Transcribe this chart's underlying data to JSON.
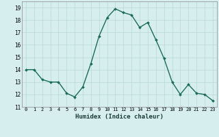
{
  "x_values": [
    0,
    1,
    2,
    3,
    4,
    5,
    6,
    7,
    8,
    9,
    10,
    11,
    12,
    13,
    14,
    15,
    16,
    17,
    18,
    19,
    20,
    21,
    22,
    23
  ],
  "y_values": [
    14.0,
    14.0,
    13.2,
    13.0,
    13.0,
    12.1,
    11.8,
    12.6,
    14.5,
    16.7,
    18.2,
    18.9,
    18.6,
    18.4,
    17.4,
    17.8,
    16.4,
    14.9,
    13.0,
    12.0,
    12.8,
    12.1,
    12.0,
    11.5
  ],
  "xlabel": "Humidex (Indice chaleur)",
  "xlim": [
    -0.5,
    23.5
  ],
  "ylim": [
    11,
    19.5
  ],
  "yticks": [
    11,
    12,
    13,
    14,
    15,
    16,
    17,
    18,
    19
  ],
  "xticks": [
    0,
    1,
    2,
    3,
    4,
    5,
    6,
    7,
    8,
    9,
    10,
    11,
    12,
    13,
    14,
    15,
    16,
    17,
    18,
    19,
    20,
    21,
    22,
    23
  ],
  "line_color": "#1a6b5a",
  "marker_color": "#1a6b5a",
  "bg_color": "#d6eeee",
  "grid_color": "#b8d8d8",
  "markersize": 2.0,
  "linewidth": 1.0
}
